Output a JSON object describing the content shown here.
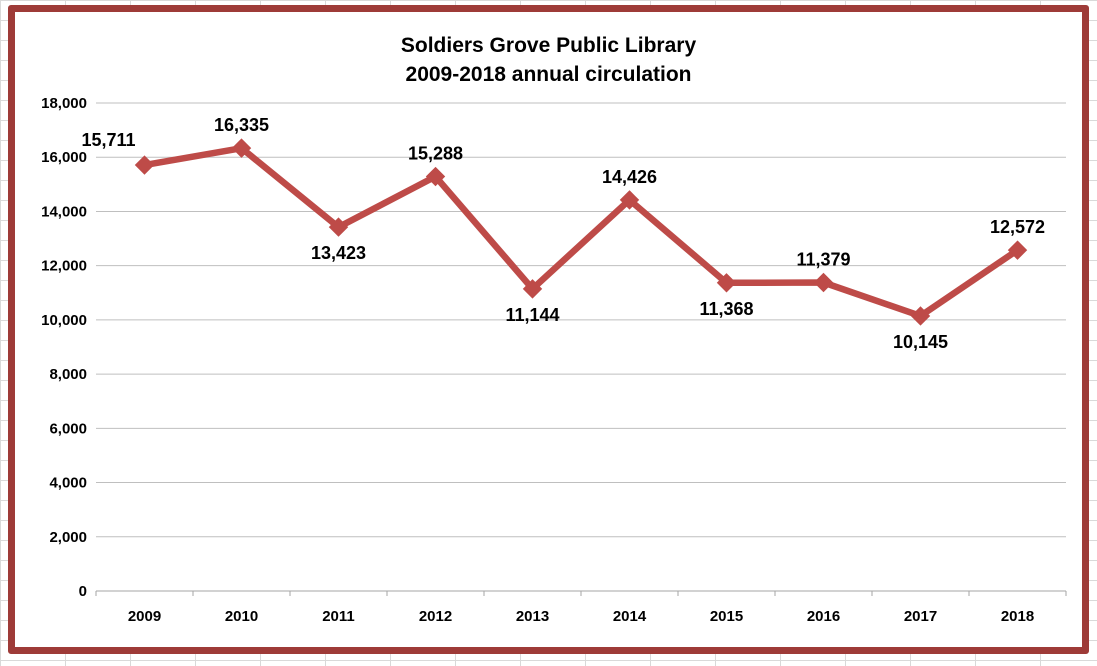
{
  "chart_data": {
    "type": "line",
    "title": "Soldiers Grove Public Library",
    "subtitle": "2009-2018 annual circulation",
    "categories": [
      "2009",
      "2010",
      "2011",
      "2012",
      "2013",
      "2014",
      "2015",
      "2016",
      "2017",
      "2018"
    ],
    "series": [
      {
        "name": "annual circulation",
        "values": [
          15711,
          16335,
          13423,
          15288,
          11144,
          14426,
          11368,
          11379,
          10145,
          12572
        ]
      }
    ],
    "data_labels": [
      "15,711",
      "16,335",
      "13,423",
      "15,288",
      "11,144",
      "14,426",
      "11,368",
      "11,379",
      "10,145",
      "12,572"
    ],
    "label_positions": [
      "above-left",
      "above",
      "below",
      "above",
      "below",
      "above",
      "below",
      "above",
      "below",
      "above"
    ],
    "ylim": [
      0,
      18000
    ],
    "ytick_step": 2000,
    "ytick_labels": [
      "0",
      "2,000",
      "4,000",
      "6,000",
      "8,000",
      "10,000",
      "12,000",
      "14,000",
      "16,000",
      "18,000"
    ],
    "xlabel": "",
    "ylabel": "",
    "grid": "horizontal",
    "legend": "none",
    "line_color": "#BE4B48",
    "marker": "diamond",
    "gridline_color": "#BFBFBF",
    "axis_color": "#A6A6A6",
    "frame_border_color": "#9E3B38"
  }
}
